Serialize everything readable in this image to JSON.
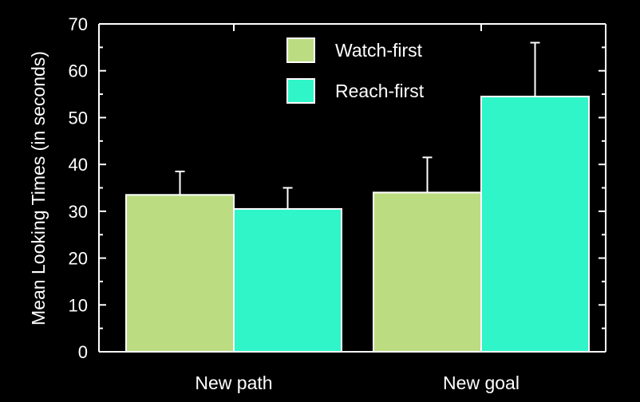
{
  "chart_data": {
    "type": "bar",
    "title": "",
    "xlabel": "",
    "ylabel": "Mean Looking Times (in seconds)",
    "ylim": [
      0,
      70
    ],
    "yticks": [
      0,
      10,
      20,
      30,
      40,
      50,
      60,
      70
    ],
    "categories": [
      "New path",
      "New goal"
    ],
    "series": [
      {
        "name": "Watch-first",
        "color": "#bcdc82",
        "values": [
          33.5,
          34
        ],
        "error_upper": [
          38.5,
          41.5
        ]
      },
      {
        "name": "Reach-first",
        "color": "#2ff5c8",
        "values": [
          30.5,
          54.5
        ],
        "error_upper": [
          35,
          66
        ]
      }
    ],
    "legend_position": "top-center",
    "grid": false
  }
}
